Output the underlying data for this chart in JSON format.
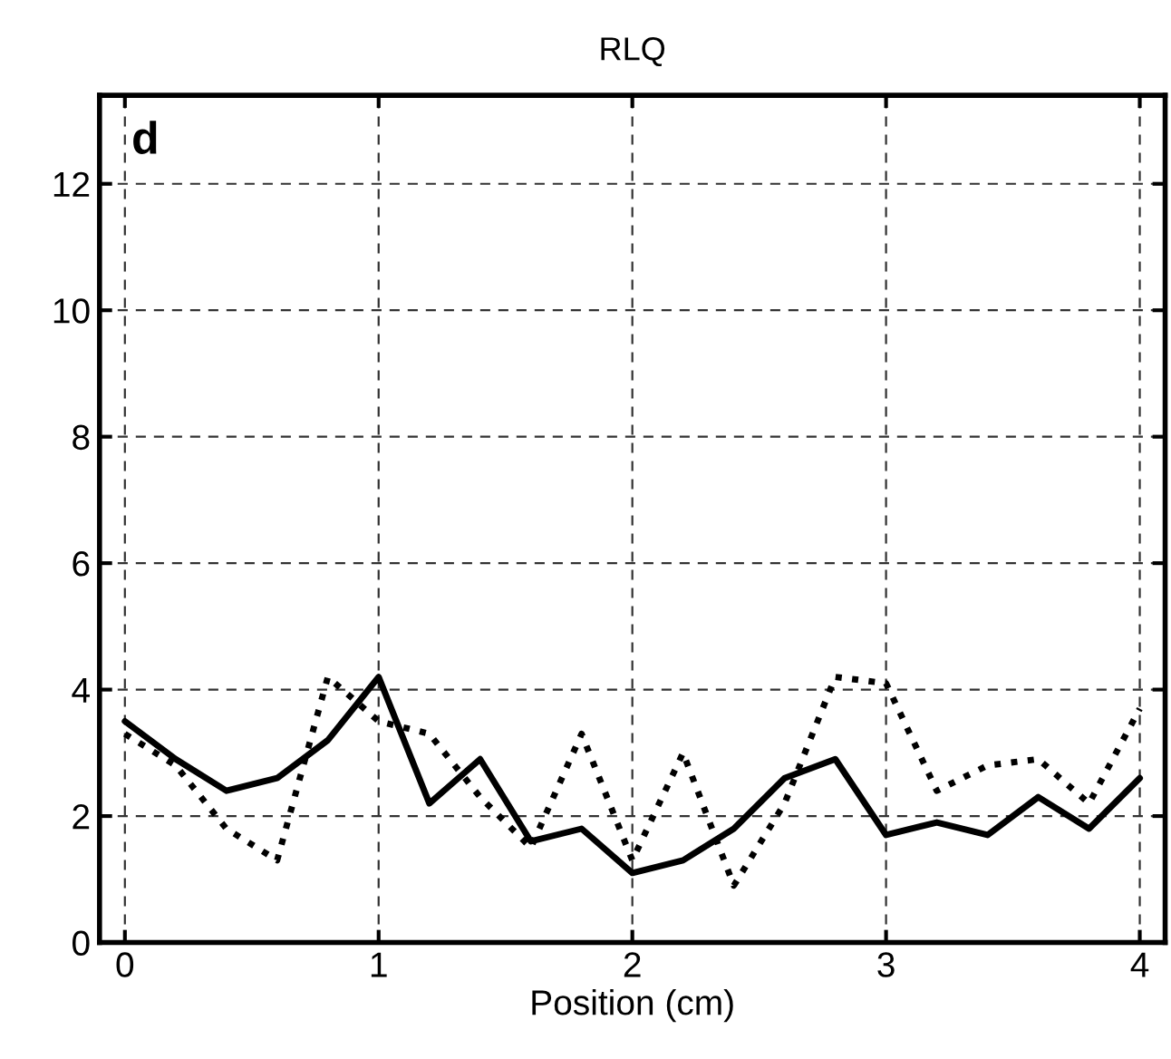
{
  "chart_data": {
    "type": "line",
    "title": "RLQ",
    "xlabel": "Position (cm)",
    "annotations": [
      "d"
    ],
    "x": [
      0,
      0.2,
      0.4,
      0.6,
      0.8,
      1.0,
      1.2,
      1.4,
      1.6,
      1.8,
      2.0,
      2.2,
      2.4,
      2.6,
      2.8,
      3.0,
      3.2,
      3.4,
      3.6,
      3.8,
      4.0
    ],
    "series": [
      {
        "color": "#000000",
        "line_style": "solid",
        "values": [
          3.5,
          2.9,
          2.4,
          2.6,
          3.2,
          4.2,
          2.2,
          2.9,
          1.6,
          1.8,
          1.1,
          1.3,
          1.8,
          2.6,
          2.9,
          1.7,
          1.9,
          1.7,
          2.3,
          1.8,
          2.6
        ]
      },
      {
        "color": "#000000",
        "line_style": "dotted",
        "values": [
          3.3,
          2.8,
          1.8,
          1.3,
          4.2,
          3.5,
          3.3,
          2.3,
          1.5,
          3.3,
          1.3,
          3.0,
          0.9,
          2.2,
          4.2,
          4.1,
          2.4,
          2.8,
          2.9,
          2.2,
          3.7
        ]
      }
    ],
    "xlim": [
      -0.1,
      4.1
    ],
    "ylim": [
      0,
      13.4
    ],
    "xticks": [
      0,
      1,
      2,
      3,
      4
    ],
    "yticks": [
      0,
      2,
      4,
      6,
      8,
      10,
      12
    ],
    "grid": true,
    "marker": "none"
  }
}
